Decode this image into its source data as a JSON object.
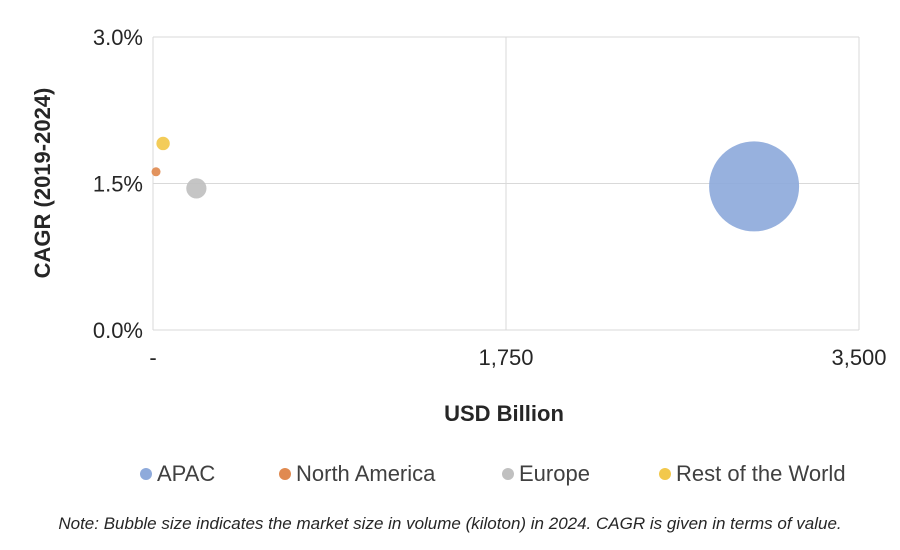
{
  "chart_data": {
    "type": "scatter",
    "subtype": "bubble",
    "xlabel": "USD Billion",
    "ylabel": "CAGR (2019-2024)",
    "xlim": [
      0,
      3500
    ],
    "ylim": [
      0,
      3.0
    ],
    "x_ticks": [
      {
        "value": 0,
        "label": "-"
      },
      {
        "value": 1750,
        "label": "1,750"
      },
      {
        "value": 3500,
        "label": "3,500"
      }
    ],
    "y_ticks": [
      {
        "value": 0,
        "label": "0.0%"
      },
      {
        "value": 1.5,
        "label": "1.5%"
      },
      {
        "value": 3.0,
        "label": "3.0%"
      }
    ],
    "grid": true,
    "legend_position": "bottom",
    "series": [
      {
        "name": "APAC",
        "x": 2980,
        "y": 1.47,
        "size": 100,
        "color": "#8eaadb"
      },
      {
        "name": "North America",
        "x": 15,
        "y": 1.62,
        "size": 1,
        "color": "#e08a50"
      },
      {
        "name": "Europe",
        "x": 215,
        "y": 1.45,
        "size": 5,
        "color": "#c0c0c0"
      },
      {
        "name": "Rest of the World",
        "x": 50,
        "y": 1.91,
        "size": 2.2,
        "color": "#f2c84b"
      }
    ]
  },
  "note": "Note: Bubble size indicates the market size in volume (kiloton) in 2024. CAGR is given in terms of value."
}
